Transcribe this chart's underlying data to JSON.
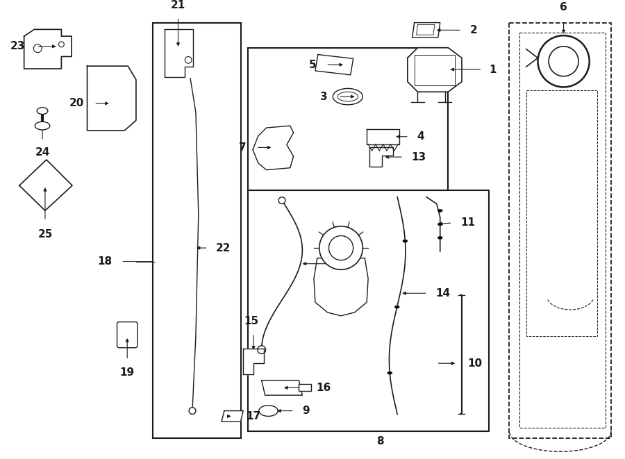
{
  "bg_color": "#ffffff",
  "line_color": "#1a1a1a",
  "fig_width": 9.0,
  "fig_height": 6.61,
  "dpi": 100,
  "lw": 1.0,
  "font_size": 10,
  "font_bold": "bold"
}
